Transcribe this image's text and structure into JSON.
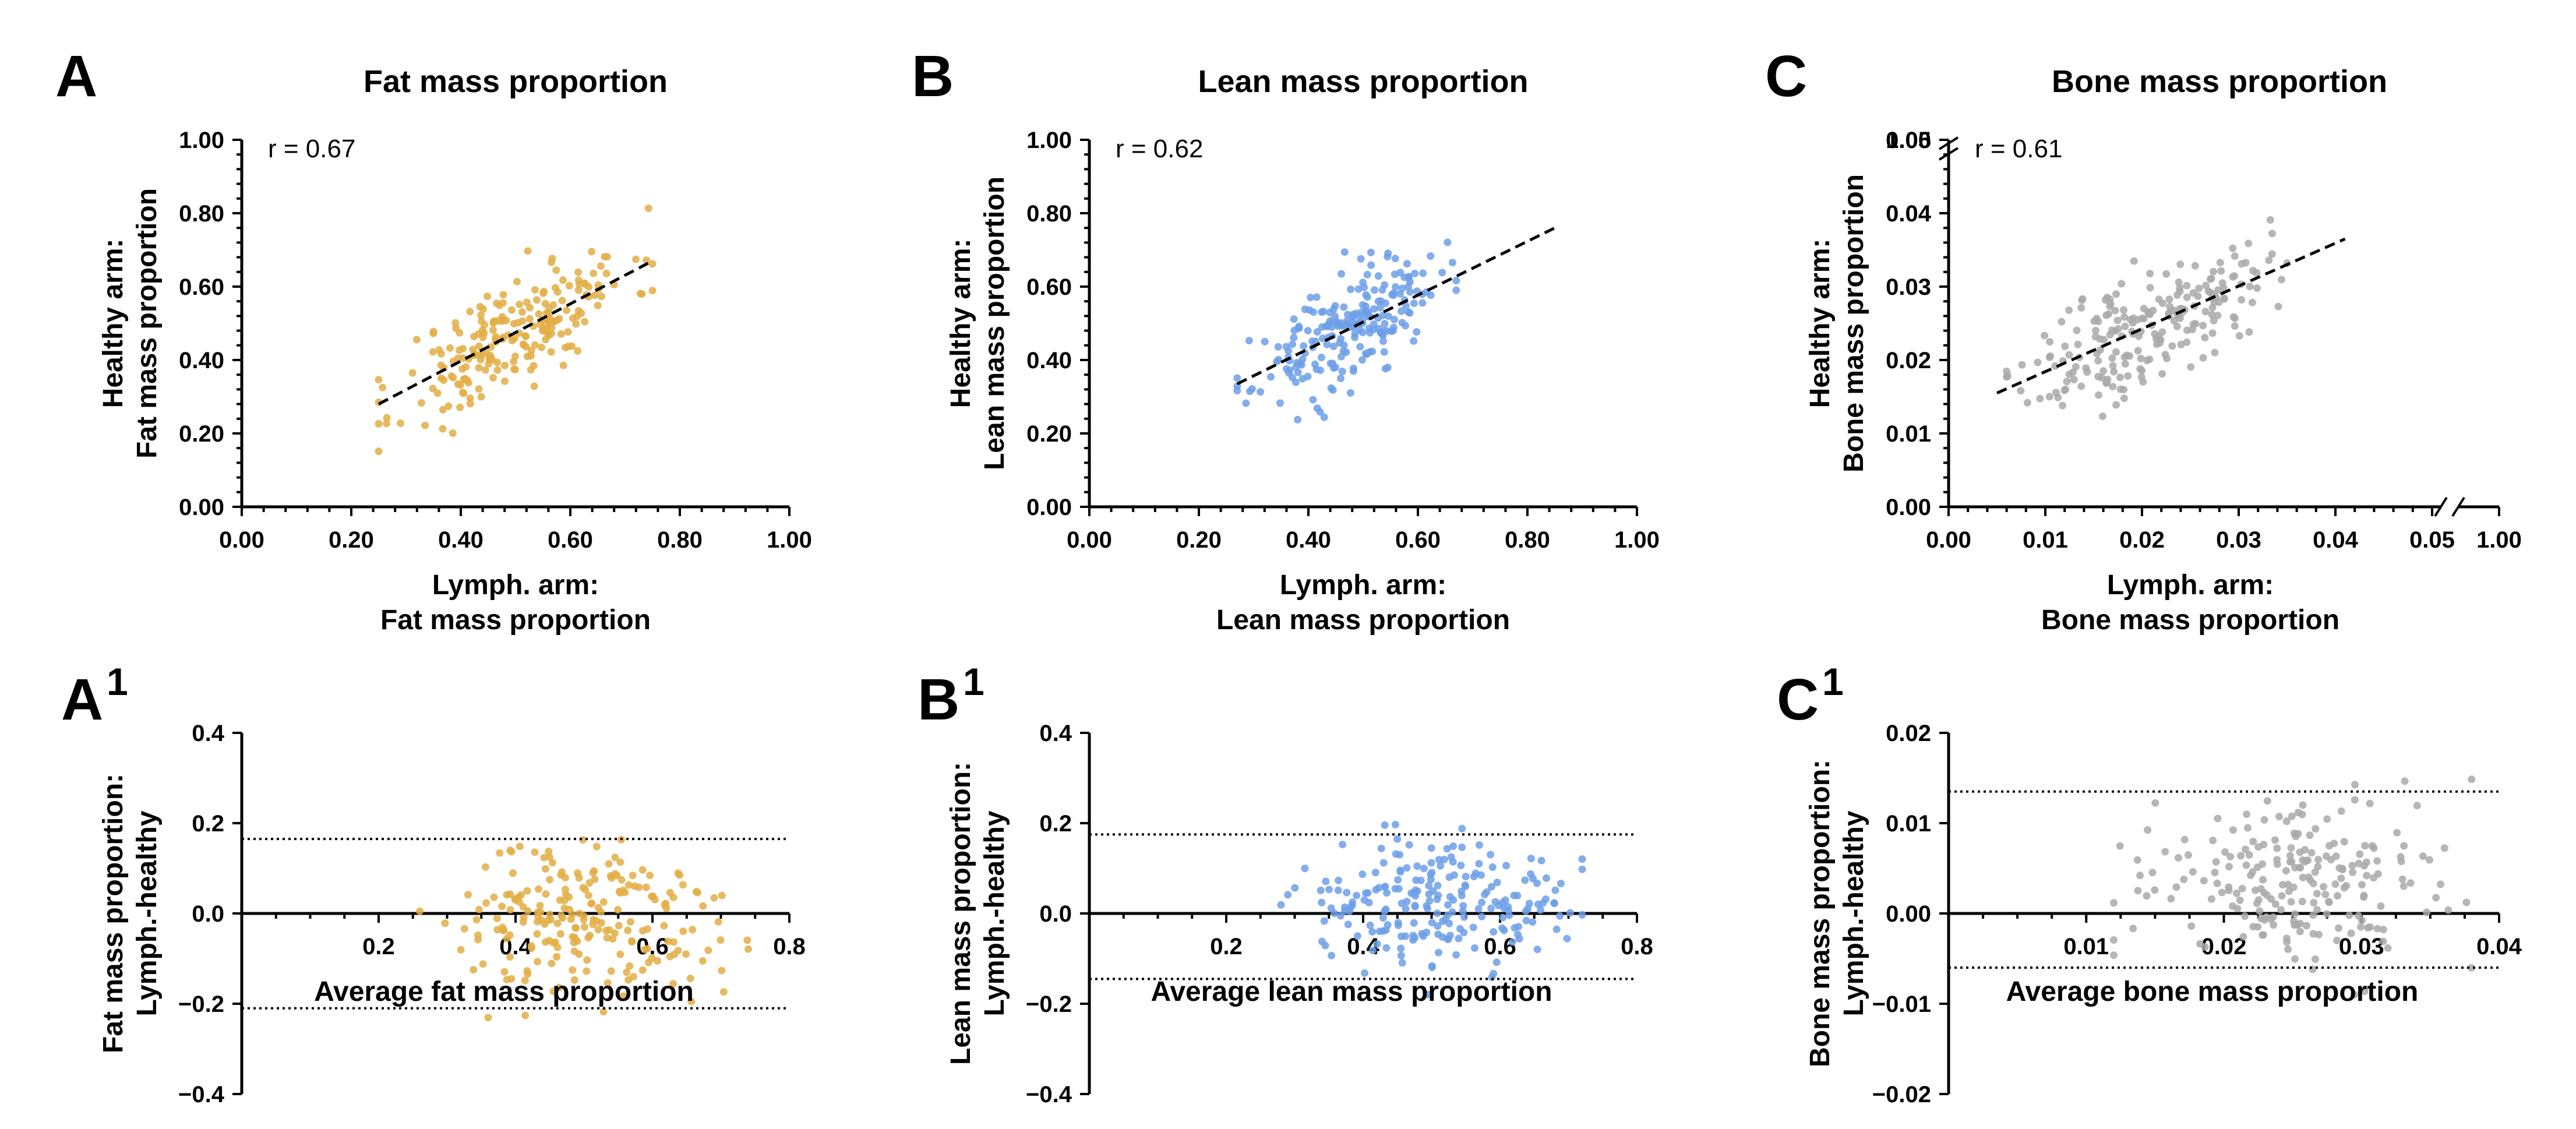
{
  "chart_data": [
    {
      "id": "A",
      "type": "scatter",
      "panel": "A",
      "title": "Fat mass proportion",
      "xlabel": [
        "Lymph. arm:",
        "Fat mass proportion"
      ],
      "ylabel": [
        "Healthy arm:",
        "Fat mass proportion"
      ],
      "xlim": [
        0,
        1
      ],
      "ylim": [
        0,
        1
      ],
      "xticks": [
        "0.00",
        "0.20",
        "0.40",
        "0.60",
        "0.80",
        "1.00"
      ],
      "yticks": [
        "0.00",
        "0.20",
        "0.40",
        "0.60",
        "0.80",
        "1.00"
      ],
      "annotation": "r = 0.67",
      "color": "#E2AE45",
      "n": 220,
      "fit": {
        "x": [
          0.25,
          0.75
        ],
        "y": [
          0.28,
          0.67
        ]
      },
      "spread": 0.075,
      "seed": 11
    },
    {
      "id": "B",
      "type": "scatter",
      "panel": "B",
      "title": "Lean mass proportion",
      "xlabel": [
        "Lymph. arm:",
        "Lean mass proportion"
      ],
      "ylabel": [
        "Healthy arm:",
        "Lean mass proportion"
      ],
      "xlim": [
        0,
        1
      ],
      "ylim": [
        0,
        1
      ],
      "xticks": [
        "0.00",
        "0.20",
        "0.40",
        "0.60",
        "0.80",
        "1.00"
      ],
      "yticks": [
        "0.00",
        "0.20",
        "0.40",
        "0.60",
        "0.80",
        "1.00"
      ],
      "annotation": "r = 0.62",
      "color": "#6D9FE8",
      "n": 220,
      "fit": {
        "x": [
          0.27,
          0.85
        ],
        "y": [
          0.335,
          0.76
        ]
      },
      "spread": 0.07,
      "seed": 23,
      "xrange": [
        0.27,
        0.67
      ]
    },
    {
      "id": "C",
      "type": "scatter",
      "panel": "C",
      "title": "Bone mass proportion",
      "xlabel": [
        "Lymph. arm:",
        "Bone mass proportion"
      ],
      "ylabel": [
        "Healthy arm:",
        "Bone mass proportion"
      ],
      "xlim": [
        0,
        0.05
      ],
      "ylim": [
        0,
        0.05
      ],
      "xticks": [
        "0.00",
        "0.01",
        "0.02",
        "0.03",
        "0.04",
        "0.05"
      ],
      "yticks": [
        "0.00",
        "0.01",
        "0.02",
        "0.03",
        "0.04",
        "0.05"
      ],
      "axis_break": {
        "x_after": "0.05",
        "x_end_label": "1.00",
        "y_after": "0.05",
        "y_end_label": "1.00"
      },
      "annotation": "r = 0.61",
      "color": "#A9A9A9",
      "n": 220,
      "fit": {
        "x": [
          0.005,
          0.041
        ],
        "y": [
          0.0155,
          0.0365
        ]
      },
      "spread": 0.004,
      "seed": 37,
      "xrange": [
        0.006,
        0.035
      ]
    },
    {
      "id": "A1",
      "type": "scatter",
      "subtype": "bland-altman",
      "panel": "A",
      "panel_sup": "1",
      "xlabel": [
        "Average fat mass proportion"
      ],
      "ylabel": [
        "Fat mass proportion:",
        "Lymph.-healthy"
      ],
      "xlim": [
        0,
        0.8
      ],
      "ylim": [
        -0.4,
        0.4
      ],
      "xticks": [
        "0.2",
        "0.4",
        "0.6",
        "0.8"
      ],
      "yticks": [
        "-0.4",
        "-0.2",
        "0.0",
        "0.2",
        "0.4"
      ],
      "limits_of_agreement": [
        0.165,
        -0.21
      ],
      "color": "#E2AE45",
      "n": 220,
      "xrange": [
        0.26,
        0.74
      ],
      "ymean": -0.02,
      "spread": 0.085,
      "seed": 51
    },
    {
      "id": "B1",
      "type": "scatter",
      "subtype": "bland-altman",
      "panel": "B",
      "panel_sup": "1",
      "xlabel": [
        "Average lean mass proportion"
      ],
      "ylabel": [
        "Lean mass proportion:",
        "Lymph.-healthy"
      ],
      "xlim": [
        0,
        0.8
      ],
      "ylim": [
        -0.4,
        0.4
      ],
      "xticks": [
        "0.2",
        "0.4",
        "0.6",
        "0.8"
      ],
      "yticks": [
        "-0.4",
        "-0.2",
        "0.0",
        "0.2",
        "0.4"
      ],
      "limits_of_agreement": [
        0.175,
        -0.145
      ],
      "color": "#6D9FE8",
      "n": 220,
      "xrange": [
        0.28,
        0.72
      ],
      "ymean": 0.01,
      "spread": 0.07,
      "seed": 67
    },
    {
      "id": "C1",
      "type": "scatter",
      "subtype": "bland-altman",
      "panel": "C",
      "panel_sup": "1",
      "xlabel": [
        "Average bone mass proportion"
      ],
      "ylabel": [
        "Bone mass proportion:",
        "Lymph.-healthy"
      ],
      "xlim": [
        0,
        0.04
      ],
      "ylim": [
        -0.02,
        0.02
      ],
      "xticks": [
        "0.01",
        "0.02",
        "0.03",
        "0.04"
      ],
      "yticks": [
        "-0.02",
        "-0.01",
        "0.00",
        "0.01",
        "0.02"
      ],
      "limits_of_agreement": [
        0.0135,
        -0.006
      ],
      "color": "#A9A9A9",
      "n": 220,
      "xrange": [
        0.012,
        0.038
      ],
      "ymean": 0.0035,
      "spread": 0.0045,
      "seed": 83
    }
  ]
}
